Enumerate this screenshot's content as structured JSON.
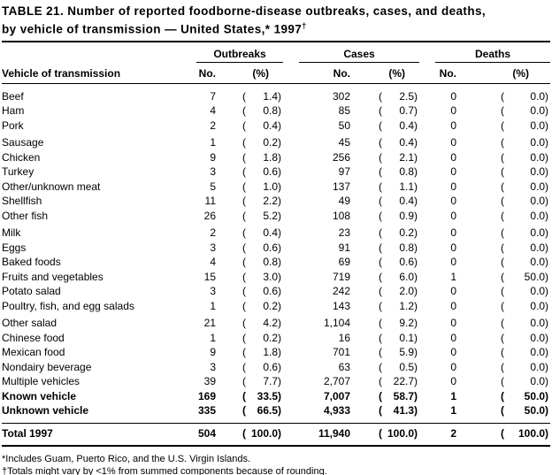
{
  "title": {
    "line1": "TABLE 21. Number of reported foodborne-disease outbreaks, cases, and deaths,",
    "line2": "by vehicle of transmission — United States,* 1997",
    "dagger": "†"
  },
  "header": {
    "vehicle_col": "Vehicle of transmission",
    "no_label": "No.",
    "pct_label": "(%)",
    "groups": [
      "Outbreaks",
      "Cases",
      "Deaths"
    ]
  },
  "punct": {
    "open": "(",
    "close": ")"
  },
  "rows": [
    {
      "label": "Beef",
      "outbreaks": {
        "no": "7",
        "pct": "1.4"
      },
      "cases": {
        "no": "302",
        "pct": "2.5"
      },
      "deaths": {
        "no": "0",
        "pct": "0.0"
      }
    },
    {
      "label": "Ham",
      "outbreaks": {
        "no": "4",
        "pct": "0.8"
      },
      "cases": {
        "no": "85",
        "pct": "0.7"
      },
      "deaths": {
        "no": "0",
        "pct": "0.0"
      }
    },
    {
      "label": "Pork",
      "outbreaks": {
        "no": "2",
        "pct": "0.4"
      },
      "cases": {
        "no": "50",
        "pct": "0.4"
      },
      "deaths": {
        "no": "0",
        "pct": "0.0"
      }
    },
    {
      "label": "Sausage",
      "gap_before": true,
      "outbreaks": {
        "no": "1",
        "pct": "0.2"
      },
      "cases": {
        "no": "45",
        "pct": "0.4"
      },
      "deaths": {
        "no": "0",
        "pct": "0.0"
      }
    },
    {
      "label": "Chicken",
      "outbreaks": {
        "no": "9",
        "pct": "1.8"
      },
      "cases": {
        "no": "256",
        "pct": "2.1"
      },
      "deaths": {
        "no": "0",
        "pct": "0.0"
      }
    },
    {
      "label": "Turkey",
      "outbreaks": {
        "no": "3",
        "pct": "0.6"
      },
      "cases": {
        "no": "97",
        "pct": "0.8"
      },
      "deaths": {
        "no": "0",
        "pct": "0.0"
      }
    },
    {
      "label": "Other/unknown meat",
      "outbreaks": {
        "no": "5",
        "pct": "1.0"
      },
      "cases": {
        "no": "137",
        "pct": "1.1"
      },
      "deaths": {
        "no": "0",
        "pct": "0.0"
      }
    },
    {
      "label": "Shellfish",
      "outbreaks": {
        "no": "11",
        "pct": "2.2"
      },
      "cases": {
        "no": "49",
        "pct": "0.4"
      },
      "deaths": {
        "no": "0",
        "pct": "0.0"
      }
    },
    {
      "label": "Other fish",
      "outbreaks": {
        "no": "26",
        "pct": "5.2"
      },
      "cases": {
        "no": "108",
        "pct": "0.9"
      },
      "deaths": {
        "no": "0",
        "pct": "0.0"
      }
    },
    {
      "label": "Milk",
      "gap_before": true,
      "outbreaks": {
        "no": "2",
        "pct": "0.4"
      },
      "cases": {
        "no": "23",
        "pct": "0.2"
      },
      "deaths": {
        "no": "0",
        "pct": "0.0"
      }
    },
    {
      "label": "Eggs",
      "outbreaks": {
        "no": "3",
        "pct": "0.6"
      },
      "cases": {
        "no": "91",
        "pct": "0.8"
      },
      "deaths": {
        "no": "0",
        "pct": "0.0"
      }
    },
    {
      "label": "Baked foods",
      "outbreaks": {
        "no": "4",
        "pct": "0.8"
      },
      "cases": {
        "no": "69",
        "pct": "0.6"
      },
      "deaths": {
        "no": "0",
        "pct": "0.0"
      }
    },
    {
      "label": "Fruits and vegetables",
      "outbreaks": {
        "no": "15",
        "pct": "3.0"
      },
      "cases": {
        "no": "719",
        "pct": "6.0"
      },
      "deaths": {
        "no": "1",
        "pct": "50.0"
      }
    },
    {
      "label": "Potato salad",
      "outbreaks": {
        "no": "3",
        "pct": "0.6"
      },
      "cases": {
        "no": "242",
        "pct": "2.0"
      },
      "deaths": {
        "no": "0",
        "pct": "0.0"
      }
    },
    {
      "label": "Poultry, fish, and egg salads",
      "outbreaks": {
        "no": "1",
        "pct": "0.2"
      },
      "cases": {
        "no": "143",
        "pct": "1.2"
      },
      "deaths": {
        "no": "0",
        "pct": "0.0"
      }
    },
    {
      "label": "Other salad",
      "gap_before": true,
      "outbreaks": {
        "no": "21",
        "pct": "4.2"
      },
      "cases": {
        "no": "1,104",
        "pct": "9.2"
      },
      "deaths": {
        "no": "0",
        "pct": "0.0"
      }
    },
    {
      "label": "Chinese food",
      "outbreaks": {
        "no": "1",
        "pct": "0.2"
      },
      "cases": {
        "no": "16",
        "pct": "0.1"
      },
      "deaths": {
        "no": "0",
        "pct": "0.0"
      }
    },
    {
      "label": "Mexican food",
      "outbreaks": {
        "no": "9",
        "pct": "1.8"
      },
      "cases": {
        "no": "701",
        "pct": "5.9"
      },
      "deaths": {
        "no": "0",
        "pct": "0.0"
      }
    },
    {
      "label": "Nondairy beverage",
      "outbreaks": {
        "no": "3",
        "pct": "0.6"
      },
      "cases": {
        "no": "63",
        "pct": "0.5"
      },
      "deaths": {
        "no": "0",
        "pct": "0.0"
      }
    },
    {
      "label": "Multiple vehicles",
      "outbreaks": {
        "no": "39",
        "pct": "7.7"
      },
      "cases": {
        "no": "2,707",
        "pct": "22.7"
      },
      "deaths": {
        "no": "0",
        "pct": "0.0"
      }
    },
    {
      "label": "Known vehicle",
      "bold": true,
      "outbreaks": {
        "no": "169",
        "pct": "33.5"
      },
      "cases": {
        "no": "7,007",
        "pct": "58.7"
      },
      "deaths": {
        "no": "1",
        "pct": "50.0"
      }
    },
    {
      "label": "Unknown vehicle",
      "bold": true,
      "outbreaks": {
        "no": "335",
        "pct": "66.5"
      },
      "cases": {
        "no": "4,933",
        "pct": "41.3"
      },
      "deaths": {
        "no": "1",
        "pct": "50.0"
      }
    }
  ],
  "total": {
    "label": "Total 1997",
    "bold": true,
    "outbreaks": {
      "no": "504",
      "pct": "100.0"
    },
    "cases": {
      "no": "11,940",
      "pct": "100.0"
    },
    "deaths": {
      "no": "2",
      "pct": "100.0"
    }
  },
  "footnotes": [
    "*Includes Guam, Puerto Rico, and the U.S. Virgin Islands.",
    "†Totals might vary by <1% from summed components because of rounding."
  ]
}
